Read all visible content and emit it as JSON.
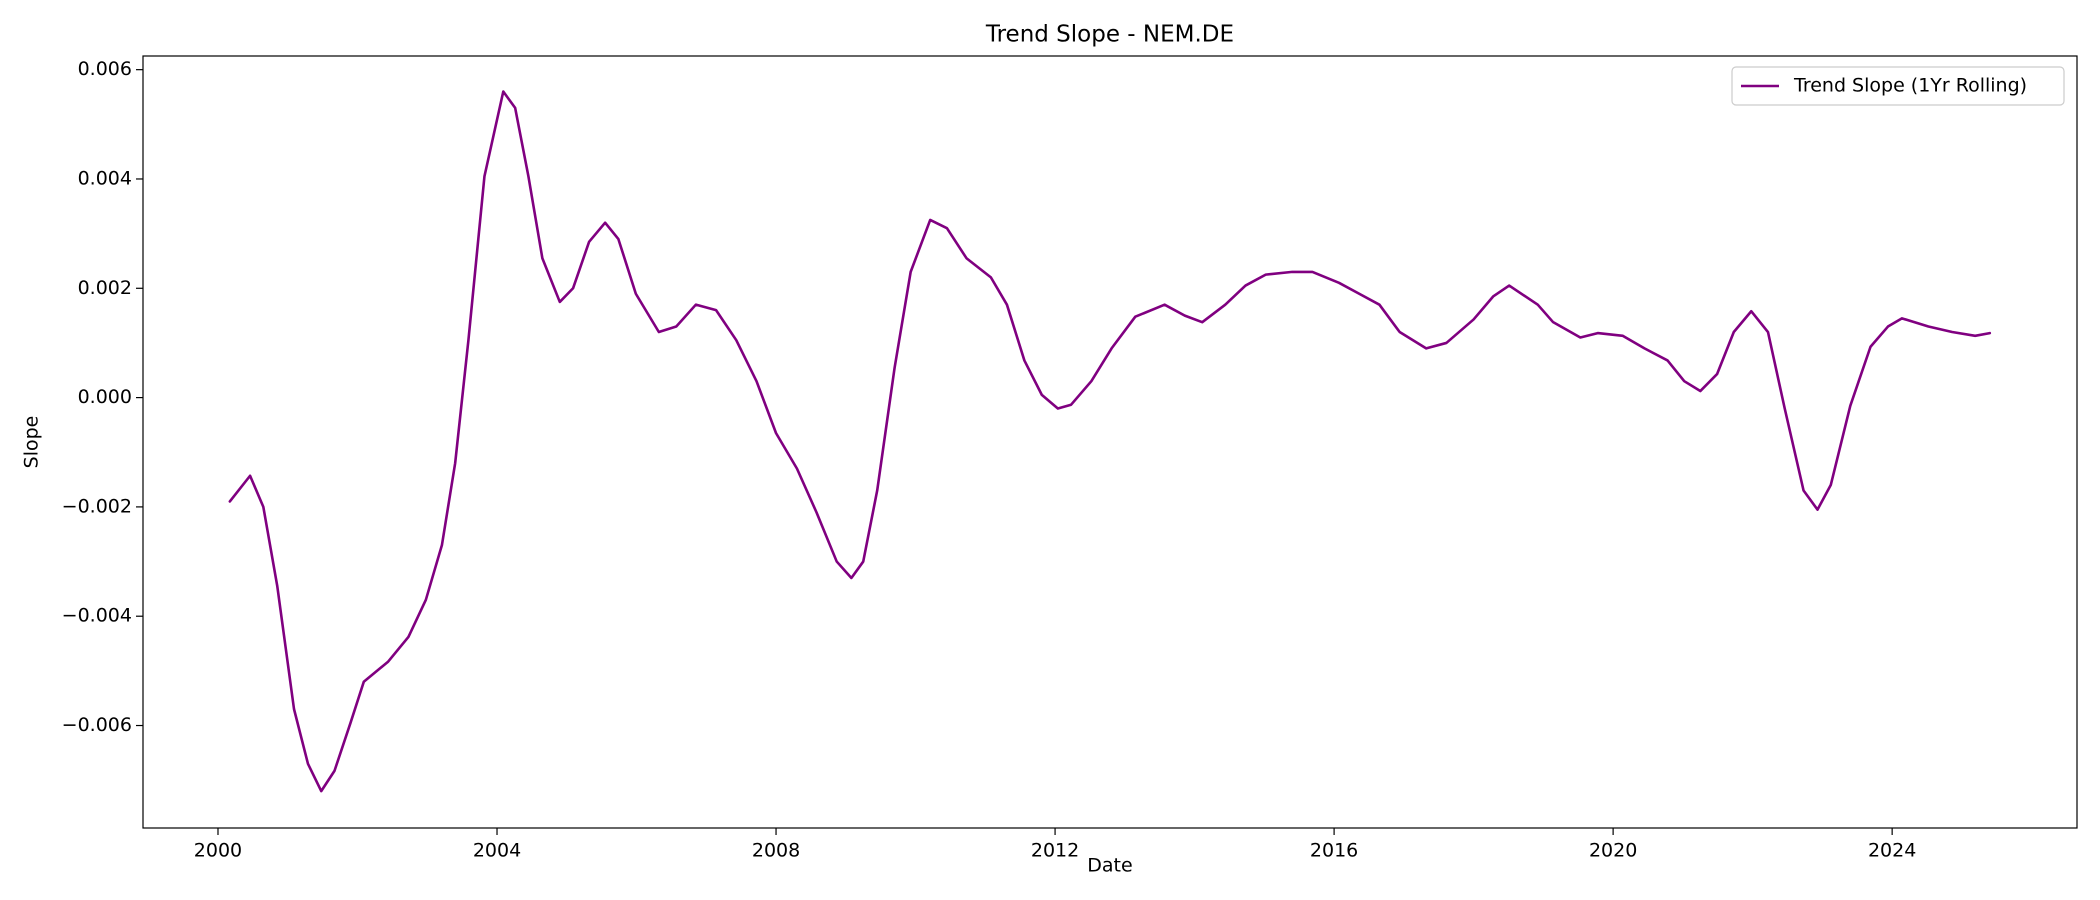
{
  "chart_data": {
    "type": "line",
    "title": "Trend Slope - NEM.DE",
    "x_label": "Date",
    "y_label": "Slope",
    "xlim": [
      1998.925,
      2026.65
    ],
    "xticks": [
      2000,
      2004,
      2008,
      2012,
      2016,
      2020,
      2024
    ],
    "ylim": [
      -0.007875,
      0.00625
    ],
    "yticks": [
      {
        "value": -0.006,
        "label": "−0.006"
      },
      {
        "value": -0.004,
        "label": "−0.004"
      },
      {
        "value": -0.002,
        "label": "−0.002"
      },
      {
        "value": 0,
        "label": "0.000"
      },
      {
        "value": 0.002,
        "label": "0.002"
      },
      {
        "value": 0.004,
        "label": "0.004"
      },
      {
        "value": 0.006,
        "label": "0.006"
      }
    ],
    "grid": false,
    "legend": "upper right",
    "x": [
      2000.17,
      2000.46,
      2000.65,
      2000.85,
      2001.09,
      2001.29,
      2001.48,
      2001.67,
      2001.9,
      2002.09,
      2002.44,
      2002.73,
      2002.98,
      2003.21,
      2003.4,
      2003.59,
      2003.82,
      2004.09,
      2004.26,
      2004.45,
      2004.65,
      2004.9,
      2005.09,
      2005.32,
      2005.55,
      2005.74,
      2005.99,
      2006.32,
      2006.57,
      2006.85,
      2007.14,
      2007.43,
      2007.72,
      2008.0,
      2008.3,
      2008.58,
      2008.87,
      2009.08,
      2009.25,
      2009.45,
      2009.7,
      2009.93,
      2010.21,
      2010.45,
      2010.73,
      2011.08,
      2011.31,
      2011.56,
      2011.81,
      2012.04,
      2012.23,
      2012.52,
      2012.81,
      2013.15,
      2013.57,
      2013.86,
      2014.11,
      2014.44,
      2014.73,
      2015.02,
      2015.4,
      2015.69,
      2016.07,
      2016.36,
      2016.65,
      2016.94,
      2017.32,
      2017.61,
      2018.0,
      2018.28,
      2018.51,
      2018.92,
      2019.14,
      2019.53,
      2019.78,
      2020.14,
      2020.45,
      2020.78,
      2021.02,
      2021.25,
      2021.49,
      2021.73,
      2021.98,
      2022.22,
      2022.46,
      2022.73,
      2022.93,
      2023.12,
      2023.4,
      2023.69,
      2023.94,
      2024.14,
      2024.52,
      2024.86,
      2025.19,
      2025.4
    ],
    "series": [
      {
        "name": "Trend Slope (1Yr Rolling)",
        "color": "#800080",
        "values": [
          -0.0019,
          -0.00143,
          -0.002,
          -0.00345,
          -0.0057,
          -0.0067,
          -0.0072,
          -0.00683,
          -0.00595,
          -0.0052,
          -0.00483,
          -0.00438,
          -0.0037,
          -0.0027,
          -0.0012,
          0.00105,
          0.00405,
          0.0056,
          0.0053,
          0.00405,
          0.00255,
          0.00175,
          0.002,
          0.00285,
          0.0032,
          0.0029,
          0.0019,
          0.0012,
          0.0013,
          0.0017,
          0.0016,
          0.00105,
          0.0003,
          -0.00065,
          -0.0013,
          -0.0021,
          -0.003,
          -0.0033,
          -0.003,
          -0.0017,
          0.00055,
          0.0023,
          0.00325,
          0.0031,
          0.00255,
          0.0022,
          0.0017,
          0.00068,
          5e-05,
          -0.0002,
          -0.00013,
          0.0003,
          0.0009,
          0.00148,
          0.0017,
          0.0015,
          0.00138,
          0.0017,
          0.00205,
          0.00225,
          0.0023,
          0.0023,
          0.0021,
          0.0019,
          0.0017,
          0.0012,
          0.0009,
          0.001,
          0.00143,
          0.00185,
          0.00205,
          0.0017,
          0.00138,
          0.0011,
          0.00118,
          0.00113,
          0.0009,
          0.00068,
          0.0003,
          0.00012,
          0.00043,
          0.0012,
          0.00158,
          0.0012,
          -0.0002,
          -0.0017,
          -0.00205,
          -0.0016,
          -0.00015,
          0.00093,
          0.0013,
          0.00145,
          0.0013,
          0.0012,
          0.00113,
          0.00118
        ]
      }
    ]
  }
}
